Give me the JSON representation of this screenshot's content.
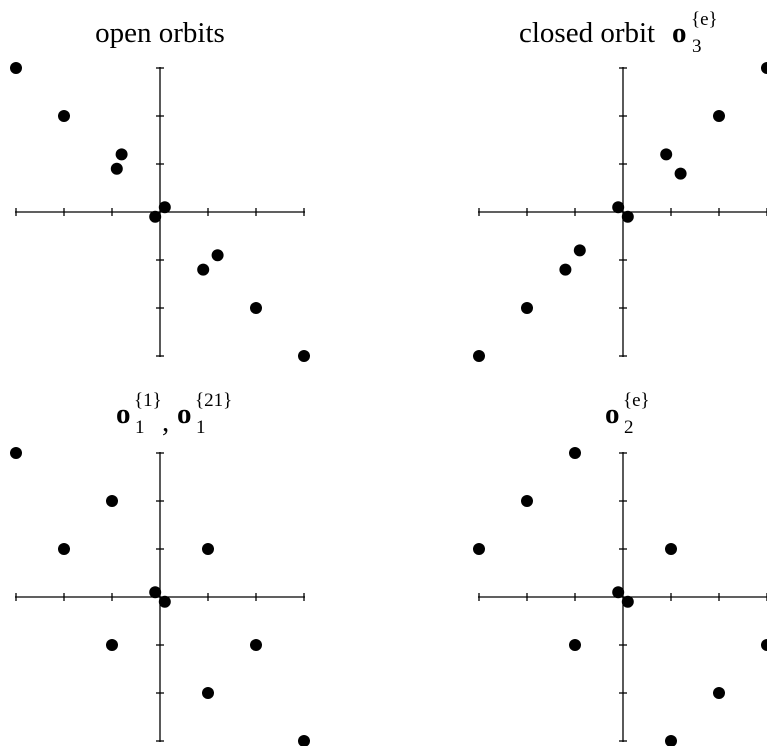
{
  "panels": [
    {
      "id": "tl",
      "title": {
        "plain": "open orbits",
        "parts": []
      },
      "points": [
        [
          -3,
          3
        ],
        [
          -2,
          2
        ],
        [
          -0.8,
          1.2
        ],
        [
          -0.9,
          0.9
        ],
        [
          -0.1,
          -0.1
        ],
        [
          0.1,
          0.1
        ],
        [
          1.2,
          -0.9
        ],
        [
          0.9,
          -1.2
        ],
        [
          2,
          -2
        ],
        [
          3,
          -3
        ]
      ]
    },
    {
      "id": "tr",
      "title": {
        "plain": "closed orbit",
        "parts": [
          {
            "base": "o",
            "sub": "3",
            "sup": "{e}"
          }
        ]
      },
      "points": [
        [
          3,
          3
        ],
        [
          2,
          2
        ],
        [
          1.2,
          0.8
        ],
        [
          0.9,
          1.2
        ],
        [
          -0.1,
          0.1
        ],
        [
          0.1,
          -0.1
        ],
        [
          -0.9,
          -0.8
        ],
        [
          -1.2,
          -1.2
        ],
        [
          -2,
          -2
        ],
        [
          -3,
          -3
        ]
      ]
    },
    {
      "id": "bl",
      "title": {
        "plain": "",
        "parts": [
          {
            "base": "o",
            "sub": "1",
            "sup": "{1}"
          },
          {
            "base": "o",
            "sub": "1",
            "sup": "{21}"
          }
        ]
      },
      "points": [
        [
          -3,
          3
        ],
        [
          -2,
          1
        ],
        [
          -1,
          2
        ],
        [
          -0.1,
          0.1
        ],
        [
          0.1,
          -0.1
        ],
        [
          1,
          1
        ],
        [
          -1,
          -1
        ],
        [
          2,
          -1
        ],
        [
          1,
          -2
        ],
        [
          3,
          -3
        ]
      ]
    },
    {
      "id": "br",
      "title": {
        "plain": "",
        "parts": [
          {
            "base": "o",
            "sub": "2",
            "sup": "{e}"
          }
        ]
      },
      "points": [
        [
          -1,
          3
        ],
        [
          -2,
          2
        ],
        [
          -3,
          1
        ],
        [
          1,
          1
        ],
        [
          -0.1,
          0.1
        ],
        [
          0.1,
          -0.1
        ],
        [
          -1,
          -1
        ],
        [
          3,
          -1
        ],
        [
          2,
          -2
        ],
        [
          1,
          -3
        ]
      ]
    }
  ]
}
